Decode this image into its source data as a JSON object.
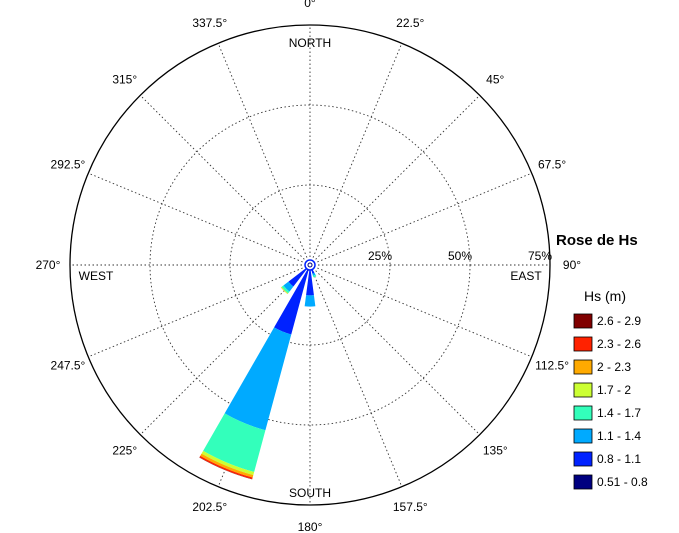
{
  "chart_data": {
    "type": "wind-rose",
    "title": "Rose de Hs",
    "legend_title": "Hs (m)",
    "legend_placement": "right",
    "rmax_percent": 75,
    "radial_ticks": [
      25,
      50,
      75
    ],
    "radial_tick_labels": [
      "25%",
      "50%",
      "75%"
    ],
    "angle_labels": [
      "0°",
      "22.5°",
      "45°",
      "67.5°",
      "90°",
      "112.5°",
      "135°",
      "157.5°",
      "180°",
      "202.5°",
      "225°",
      "247.5°",
      "270°",
      "292.5°",
      "315°",
      "337.5°"
    ],
    "cardinal_labels": {
      "north": "NORTH",
      "south": "SOUTH",
      "east": "EAST",
      "west": "WEST"
    },
    "grid": true,
    "bins": [
      {
        "label": "0.51 - 0.8",
        "color": "#000080"
      },
      {
        "label": "0.8 - 1.1",
        "color": "#0022ff"
      },
      {
        "label": "1.1 - 1.4",
        "color": "#00aaff"
      },
      {
        "label": "1.4 - 1.7",
        "color": "#33ffbb"
      },
      {
        "label": "1.7 - 2",
        "color": "#ccff33"
      },
      {
        "label": "2 - 2.3",
        "color": "#ffaa00"
      },
      {
        "label": "2.3 - 2.6",
        "color": "#ff2200"
      },
      {
        "label": "2.6 - 2.9",
        "color": "#800000"
      }
    ],
    "sectors": [
      {
        "direction": 157.5,
        "cumulative": [
          0.6,
          2.8,
          3.5,
          4.0,
          4.0,
          4.0,
          4.0,
          4.0
        ]
      },
      {
        "direction": 180,
        "cumulative": [
          1.0,
          9.5,
          13.0,
          13.0,
          13.0,
          13.0,
          13.0,
          13.0
        ]
      },
      {
        "direction": 202.5,
        "cumulative": [
          2.0,
          22.5,
          53.5,
          67.0,
          68.0,
          68.8,
          69.3,
          69.4
        ]
      },
      {
        "direction": 225,
        "cumulative": [
          1.0,
          8.5,
          10.5,
          11.2,
          11.4,
          11.5,
          11.5,
          11.5
        ]
      },
      {
        "direction": 247.5,
        "cumulative": [
          0.6,
          1.2,
          1.4,
          1.5,
          1.5,
          1.5,
          1.5,
          1.5
        ]
      },
      {
        "direction": 270,
        "cumulative": [
          0.6,
          0.9,
          1.0,
          1.0,
          1.0,
          1.0,
          1.0,
          1.0
        ]
      }
    ]
  }
}
